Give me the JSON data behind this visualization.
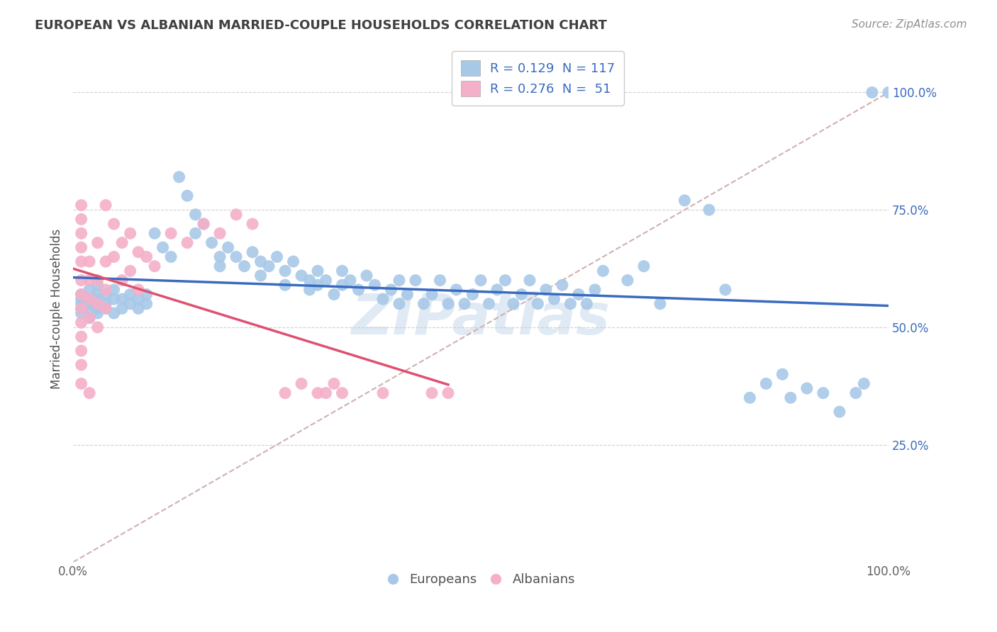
{
  "title": "EUROPEAN VS ALBANIAN MARRIED-COUPLE HOUSEHOLDS CORRELATION CHART",
  "source_text": "Source: ZipAtlas.com",
  "ylabel": "Married-couple Households",
  "xlim": [
    0,
    1
  ],
  "ylim": [
    0,
    1.08
  ],
  "xtick_labels": [
    "0.0%",
    "100.0%"
  ],
  "ytick_labels": [
    "25.0%",
    "50.0%",
    "75.0%",
    "100.0%"
  ],
  "ytick_positions": [
    0.25,
    0.5,
    0.75,
    1.0
  ],
  "watermark": "ZIPatlas",
  "blue_color": "#a8c8e8",
  "pink_color": "#f4b0c8",
  "blue_line_color": "#3a6bbf",
  "pink_line_color": "#e05070",
  "dashed_line_color": "#d0b0b0",
  "background_color": "#ffffff",
  "title_color": "#404040",
  "europeans_label": "Europeans",
  "albanians_label": "Albanians",
  "legend_blue_color": "#a8c8e8",
  "legend_pink_color": "#f4b0c8",
  "legend_text_color": "#3a6bbf",
  "yticklabel_color": "#3a6bbf",
  "blue_scatter": [
    [
      0.01,
      0.56
    ],
    [
      0.01,
      0.54
    ],
    [
      0.01,
      0.53
    ],
    [
      0.01,
      0.57
    ],
    [
      0.01,
      0.55
    ],
    [
      0.02,
      0.56
    ],
    [
      0.02,
      0.54
    ],
    [
      0.02,
      0.52
    ],
    [
      0.02,
      0.58
    ],
    [
      0.02,
      0.55
    ],
    [
      0.03,
      0.57
    ],
    [
      0.03,
      0.53
    ],
    [
      0.03,
      0.56
    ],
    [
      0.03,
      0.54
    ],
    [
      0.03,
      0.59
    ],
    [
      0.04,
      0.55
    ],
    [
      0.04,
      0.57
    ],
    [
      0.04,
      0.54
    ],
    [
      0.05,
      0.56
    ],
    [
      0.05,
      0.53
    ],
    [
      0.05,
      0.58
    ],
    [
      0.06,
      0.56
    ],
    [
      0.06,
      0.54
    ],
    [
      0.07,
      0.57
    ],
    [
      0.07,
      0.55
    ],
    [
      0.08,
      0.56
    ],
    [
      0.08,
      0.54
    ],
    [
      0.09,
      0.57
    ],
    [
      0.09,
      0.55
    ],
    [
      0.1,
      0.7
    ],
    [
      0.11,
      0.67
    ],
    [
      0.12,
      0.65
    ],
    [
      0.13,
      0.82
    ],
    [
      0.14,
      0.78
    ],
    [
      0.15,
      0.74
    ],
    [
      0.15,
      0.7
    ],
    [
      0.16,
      0.72
    ],
    [
      0.17,
      0.68
    ],
    [
      0.18,
      0.65
    ],
    [
      0.18,
      0.63
    ],
    [
      0.19,
      0.67
    ],
    [
      0.2,
      0.65
    ],
    [
      0.21,
      0.63
    ],
    [
      0.22,
      0.66
    ],
    [
      0.23,
      0.64
    ],
    [
      0.23,
      0.61
    ],
    [
      0.24,
      0.63
    ],
    [
      0.25,
      0.65
    ],
    [
      0.26,
      0.62
    ],
    [
      0.26,
      0.59
    ],
    [
      0.27,
      0.64
    ],
    [
      0.28,
      0.61
    ],
    [
      0.29,
      0.6
    ],
    [
      0.29,
      0.58
    ],
    [
      0.3,
      0.62
    ],
    [
      0.3,
      0.59
    ],
    [
      0.31,
      0.6
    ],
    [
      0.32,
      0.57
    ],
    [
      0.33,
      0.62
    ],
    [
      0.33,
      0.59
    ],
    [
      0.34,
      0.6
    ],
    [
      0.35,
      0.58
    ],
    [
      0.36,
      0.61
    ],
    [
      0.37,
      0.59
    ],
    [
      0.38,
      0.56
    ],
    [
      0.39,
      0.58
    ],
    [
      0.4,
      0.6
    ],
    [
      0.4,
      0.55
    ],
    [
      0.41,
      0.57
    ],
    [
      0.42,
      0.6
    ],
    [
      0.43,
      0.55
    ],
    [
      0.44,
      0.57
    ],
    [
      0.45,
      0.6
    ],
    [
      0.46,
      0.55
    ],
    [
      0.47,
      0.58
    ],
    [
      0.48,
      0.55
    ],
    [
      0.49,
      0.57
    ],
    [
      0.5,
      0.6
    ],
    [
      0.51,
      0.55
    ],
    [
      0.52,
      0.58
    ],
    [
      0.53,
      0.6
    ],
    [
      0.54,
      0.55
    ],
    [
      0.55,
      0.57
    ],
    [
      0.56,
      0.6
    ],
    [
      0.57,
      0.55
    ],
    [
      0.58,
      0.58
    ],
    [
      0.59,
      0.56
    ],
    [
      0.6,
      0.59
    ],
    [
      0.61,
      0.55
    ],
    [
      0.62,
      0.57
    ],
    [
      0.63,
      0.55
    ],
    [
      0.64,
      0.58
    ],
    [
      0.65,
      0.62
    ],
    [
      0.68,
      0.6
    ],
    [
      0.7,
      0.63
    ],
    [
      0.72,
      0.55
    ],
    [
      0.75,
      0.77
    ],
    [
      0.78,
      0.75
    ],
    [
      0.8,
      0.58
    ],
    [
      0.83,
      0.35
    ],
    [
      0.85,
      0.38
    ],
    [
      0.87,
      0.4
    ],
    [
      0.88,
      0.35
    ],
    [
      0.9,
      0.37
    ],
    [
      0.92,
      0.36
    ],
    [
      0.96,
      0.36
    ],
    [
      0.97,
      0.38
    ],
    [
      0.94,
      0.32
    ],
    [
      0.98,
      1.0
    ],
    [
      1.0,
      1.0
    ]
  ],
  "pink_scatter": [
    [
      0.01,
      0.76
    ],
    [
      0.01,
      0.73
    ],
    [
      0.01,
      0.7
    ],
    [
      0.01,
      0.67
    ],
    [
      0.01,
      0.64
    ],
    [
      0.01,
      0.6
    ],
    [
      0.01,
      0.57
    ],
    [
      0.01,
      0.54
    ],
    [
      0.01,
      0.51
    ],
    [
      0.01,
      0.48
    ],
    [
      0.01,
      0.45
    ],
    [
      0.01,
      0.42
    ],
    [
      0.01,
      0.38
    ],
    [
      0.02,
      0.36
    ],
    [
      0.02,
      0.56
    ],
    [
      0.02,
      0.52
    ],
    [
      0.02,
      0.6
    ],
    [
      0.02,
      0.64
    ],
    [
      0.03,
      0.68
    ],
    [
      0.03,
      0.6
    ],
    [
      0.03,
      0.55
    ],
    [
      0.03,
      0.5
    ],
    [
      0.04,
      0.64
    ],
    [
      0.04,
      0.58
    ],
    [
      0.04,
      0.54
    ],
    [
      0.04,
      0.76
    ],
    [
      0.05,
      0.72
    ],
    [
      0.05,
      0.65
    ],
    [
      0.06,
      0.68
    ],
    [
      0.06,
      0.6
    ],
    [
      0.07,
      0.7
    ],
    [
      0.07,
      0.62
    ],
    [
      0.08,
      0.66
    ],
    [
      0.08,
      0.58
    ],
    [
      0.09,
      0.65
    ],
    [
      0.1,
      0.63
    ],
    [
      0.12,
      0.7
    ],
    [
      0.14,
      0.68
    ],
    [
      0.16,
      0.72
    ],
    [
      0.18,
      0.7
    ],
    [
      0.2,
      0.74
    ],
    [
      0.22,
      0.72
    ],
    [
      0.26,
      0.36
    ],
    [
      0.28,
      0.38
    ],
    [
      0.3,
      0.36
    ],
    [
      0.31,
      0.36
    ],
    [
      0.32,
      0.38
    ],
    [
      0.33,
      0.36
    ],
    [
      0.38,
      0.36
    ],
    [
      0.44,
      0.36
    ],
    [
      0.46,
      0.36
    ]
  ]
}
